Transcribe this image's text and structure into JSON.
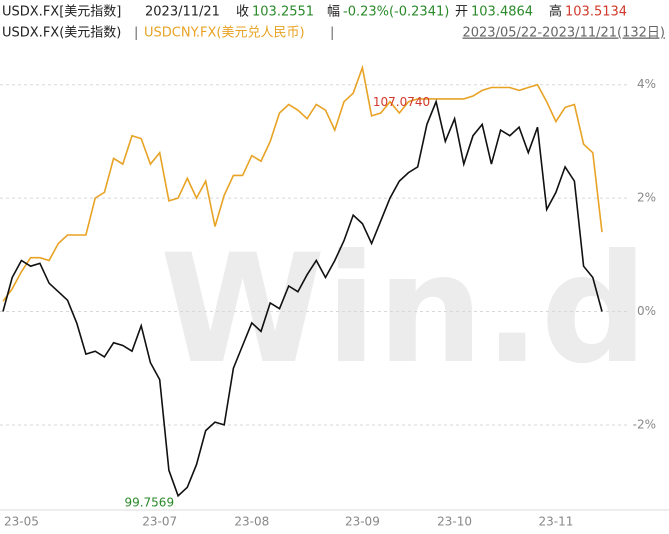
{
  "header": {
    "symbol": "USDX.FX[美元指数]",
    "date": "2023/11/21",
    "close_label": "收",
    "close": "103.2551",
    "change_label": "幅",
    "change": "-0.23%(-0.2341)",
    "open_label": "开",
    "open": "103.4864",
    "high_label": "高",
    "high": "103.5134",
    "separator": "|",
    "range": "2023/05/22-2023/11/21(132日)"
  },
  "chart_data": {
    "type": "line",
    "watermark": "Win.d",
    "categories": [
      null,
      null,
      "23-05",
      null,
      null,
      null,
      null,
      null,
      null,
      null,
      null,
      null,
      null,
      null,
      null,
      null,
      null,
      "23-07",
      null,
      null,
      null,
      null,
      null,
      null,
      null,
      null,
      null,
      "23-08",
      null,
      null,
      null,
      null,
      null,
      null,
      null,
      null,
      null,
      null,
      null,
      "23-09",
      null,
      null,
      null,
      null,
      null,
      null,
      null,
      null,
      null,
      "23-10",
      null,
      null,
      null,
      null,
      null,
      null,
      null,
      null,
      null,
      null,
      "23-11",
      null,
      null,
      null,
      null,
      null
    ],
    "series": [
      {
        "name": "USDX.FX(美元指数)",
        "color": "#111111",
        "values": [
          0,
          0.6,
          0.9,
          0.8,
          0.85,
          0.5,
          0.35,
          0.2,
          -0.2,
          -0.75,
          -0.7,
          -0.8,
          -0.55,
          -0.6,
          -0.7,
          -0.25,
          -0.9,
          -1.2,
          -2.8,
          -3.25,
          -3.1,
          -2.7,
          -2.1,
          -1.95,
          -2.0,
          -1.0,
          -0.6,
          -0.2,
          -0.35,
          0.15,
          0.05,
          0.45,
          0.35,
          0.65,
          0.9,
          0.6,
          0.9,
          1.25,
          1.7,
          1.55,
          1.2,
          1.6,
          2.0,
          2.3,
          2.45,
          2.55,
          3.3,
          3.7,
          3.0,
          3.4,
          2.6,
          3.1,
          3.3,
          2.6,
          3.2,
          3.1,
          3.25,
          2.8,
          3.25,
          1.8,
          2.1,
          2.55,
          2.3,
          0.8,
          0.6,
          0
        ]
      },
      {
        "name": "USDCNY.FX(美元兑人民币)",
        "color": "#e8a325",
        "values": [
          0.18,
          0.4,
          0.7,
          0.95,
          0.95,
          0.9,
          1.2,
          1.35,
          1.35,
          1.35,
          2.0,
          2.1,
          2.7,
          2.6,
          3.1,
          3.05,
          2.6,
          2.8,
          1.95,
          2.0,
          2.35,
          2.0,
          2.3,
          1.5,
          2.05,
          2.4,
          2.4,
          2.75,
          2.65,
          3.0,
          3.5,
          3.65,
          3.55,
          3.4,
          3.65,
          3.55,
          3.2,
          3.7,
          3.85,
          4.3,
          3.45,
          3.5,
          3.7,
          3.5,
          3.7,
          3.75,
          3.75,
          3.75,
          3.75,
          3.75,
          3.75,
          3.8,
          3.9,
          3.95,
          3.95,
          3.95,
          3.9,
          3.95,
          4.0,
          3.7,
          3.35,
          3.6,
          3.65,
          2.95,
          2.8,
          1.4
        ]
      }
    ],
    "annotations": {
      "high": "107.0740",
      "low": "99.7569"
    },
    "ylim": [
      -3.5,
      4.7
    ],
    "yticks": [
      {
        "value": 4,
        "label": "4%"
      },
      {
        "value": 2,
        "label": "2%"
      },
      {
        "value": 0,
        "label": "0%"
      },
      {
        "value": -2,
        "label": "-2%"
      }
    ],
    "grid": true
  }
}
